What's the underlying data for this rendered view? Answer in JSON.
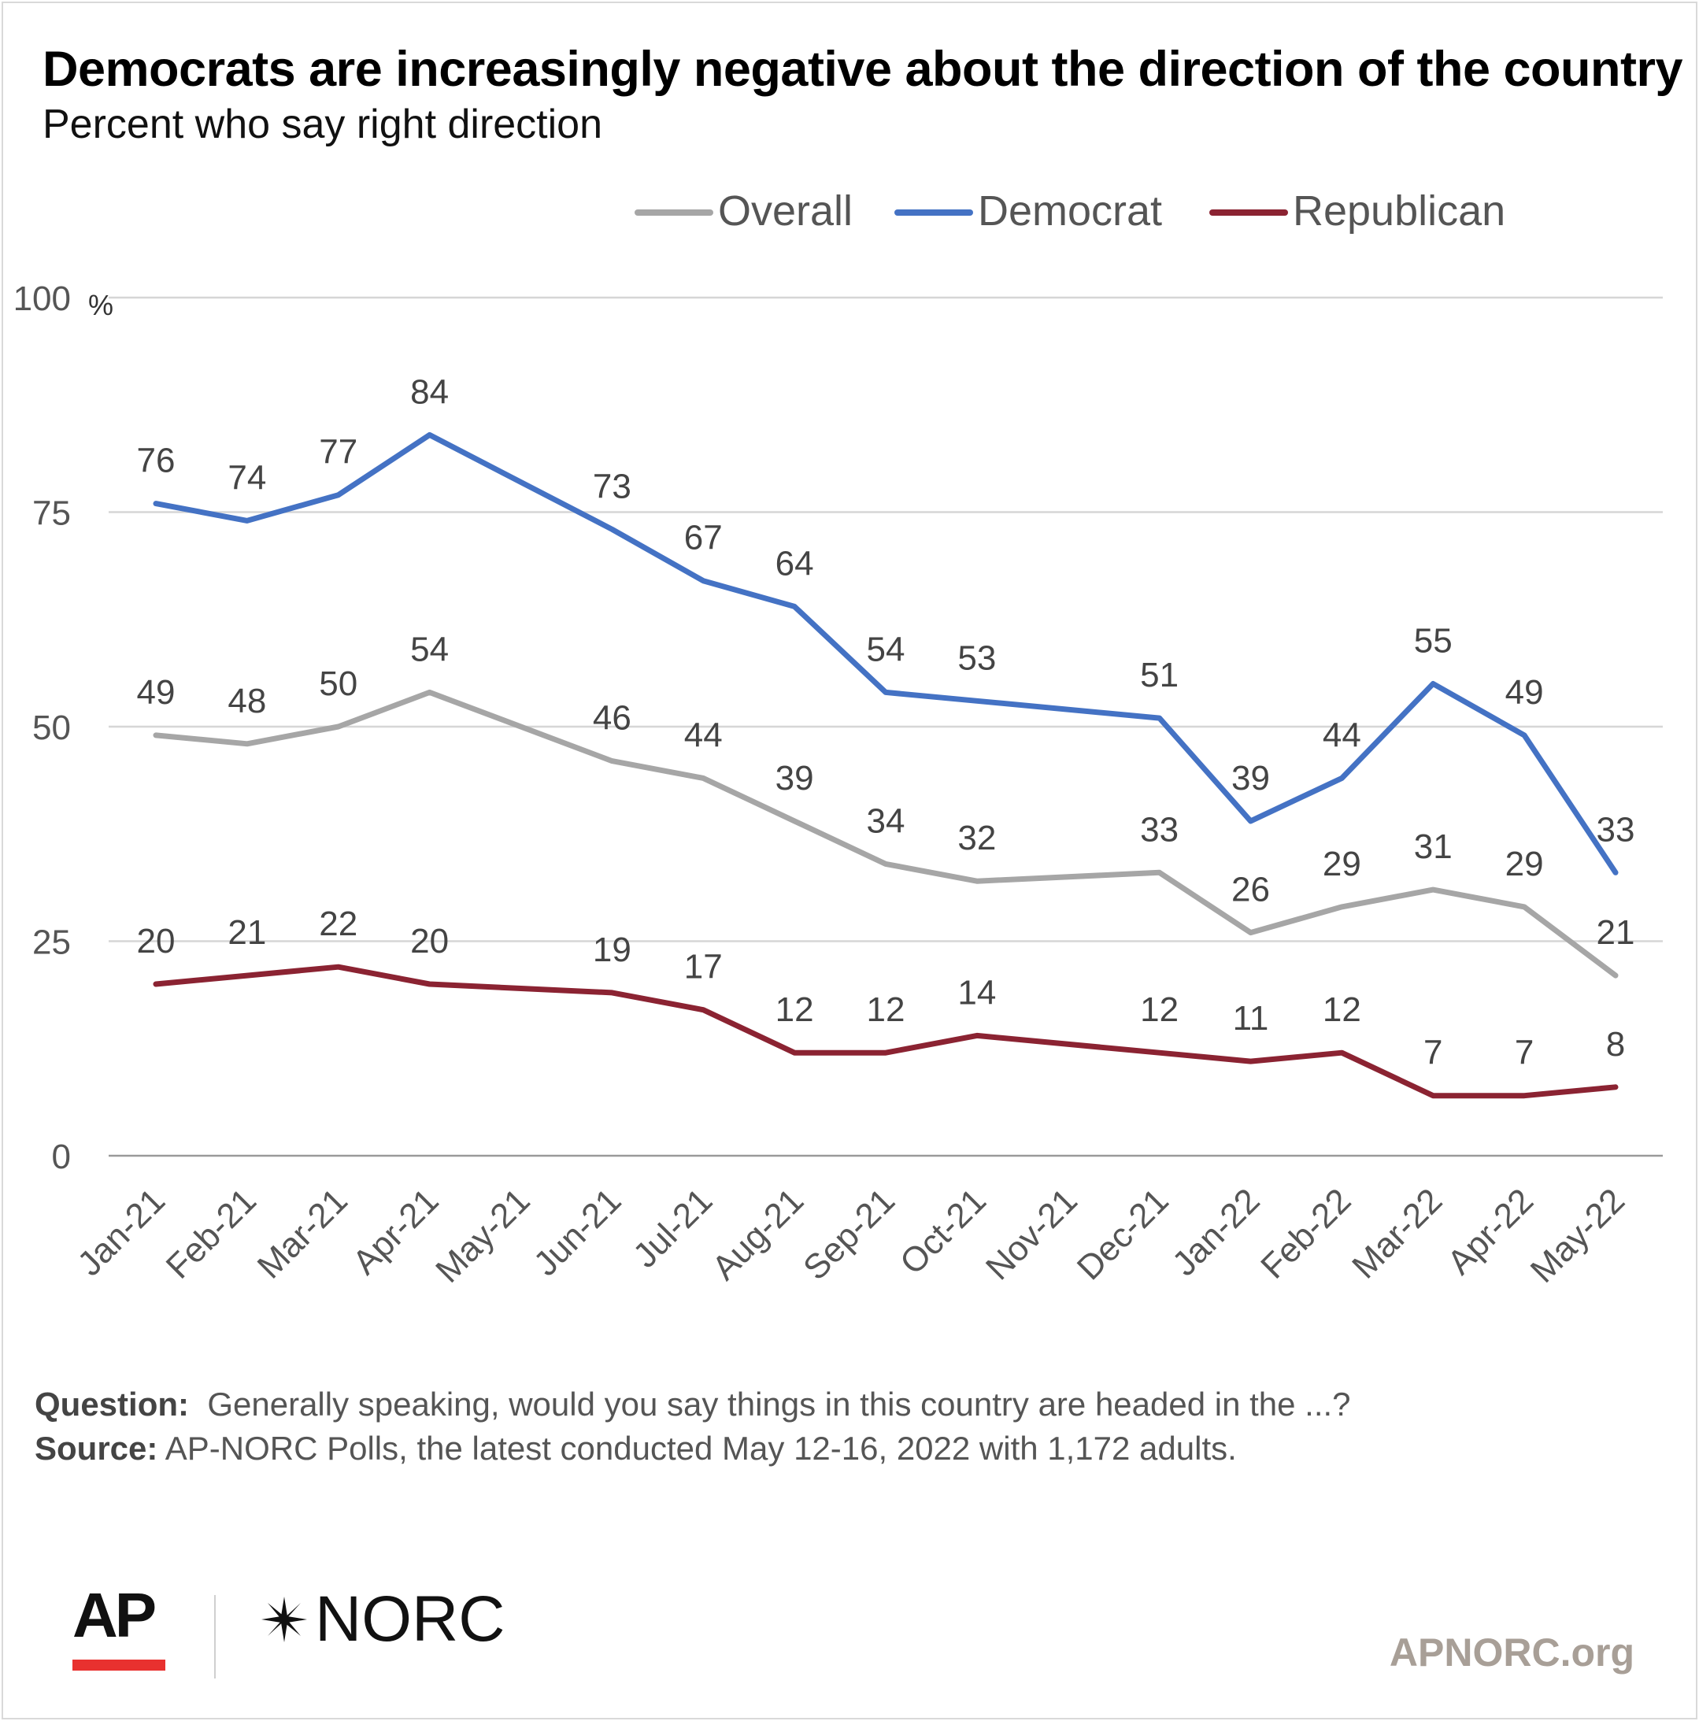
{
  "title": "Democrats are increasingly negative about the direction of the country",
  "subtitle": "Percent who say right direction",
  "chart_data": {
    "type": "line",
    "title": "Democrats are increasingly negative about the direction of the country",
    "subtitle": "Percent who say right direction",
    "x": [
      "Jan-21",
      "Feb-21",
      "Mar-21",
      "Apr-21",
      "May-21",
      "Jun-21",
      "Jul-21",
      "Aug-21",
      "Sep-21",
      "Oct-21",
      "Nov-21",
      "Dec-21",
      "Jan-22",
      "Feb-22",
      "Mar-22",
      "Apr-22",
      "May-22"
    ],
    "ylim": [
      0,
      100
    ],
    "yticks": [
      "0",
      "25",
      "50",
      "75",
      "100"
    ],
    "y_unit": "%",
    "grid": true,
    "legend": "top",
    "series": [
      {
        "name": "Overall",
        "color": "#a6a6a6",
        "values": [
          49,
          48,
          50,
          54,
          null,
          46,
          44,
          39,
          34,
          32,
          null,
          33,
          26,
          29,
          31,
          29,
          21
        ]
      },
      {
        "name": "Democrat",
        "color": "#4472c4",
        "values": [
          76,
          74,
          77,
          84,
          null,
          73,
          67,
          64,
          54,
          53,
          null,
          51,
          39,
          44,
          55,
          49,
          33
        ]
      },
      {
        "name": "Republican",
        "color": "#8b2332",
        "values": [
          20,
          21,
          22,
          20,
          null,
          19,
          17,
          12,
          12,
          14,
          null,
          12,
          11,
          12,
          7,
          7,
          8
        ]
      }
    ]
  },
  "notes": {
    "question_label": "Question:",
    "question_text": "Generally speaking, would you say things in this country are headed in the ...?",
    "source_label": "Source:",
    "source_text": "AP-NORC Polls, the latest conducted May 12-16, 2022 with 1,172 adults."
  },
  "logos": {
    "ap": "AP",
    "norc": "NORC",
    "site": "APNORC.org"
  }
}
